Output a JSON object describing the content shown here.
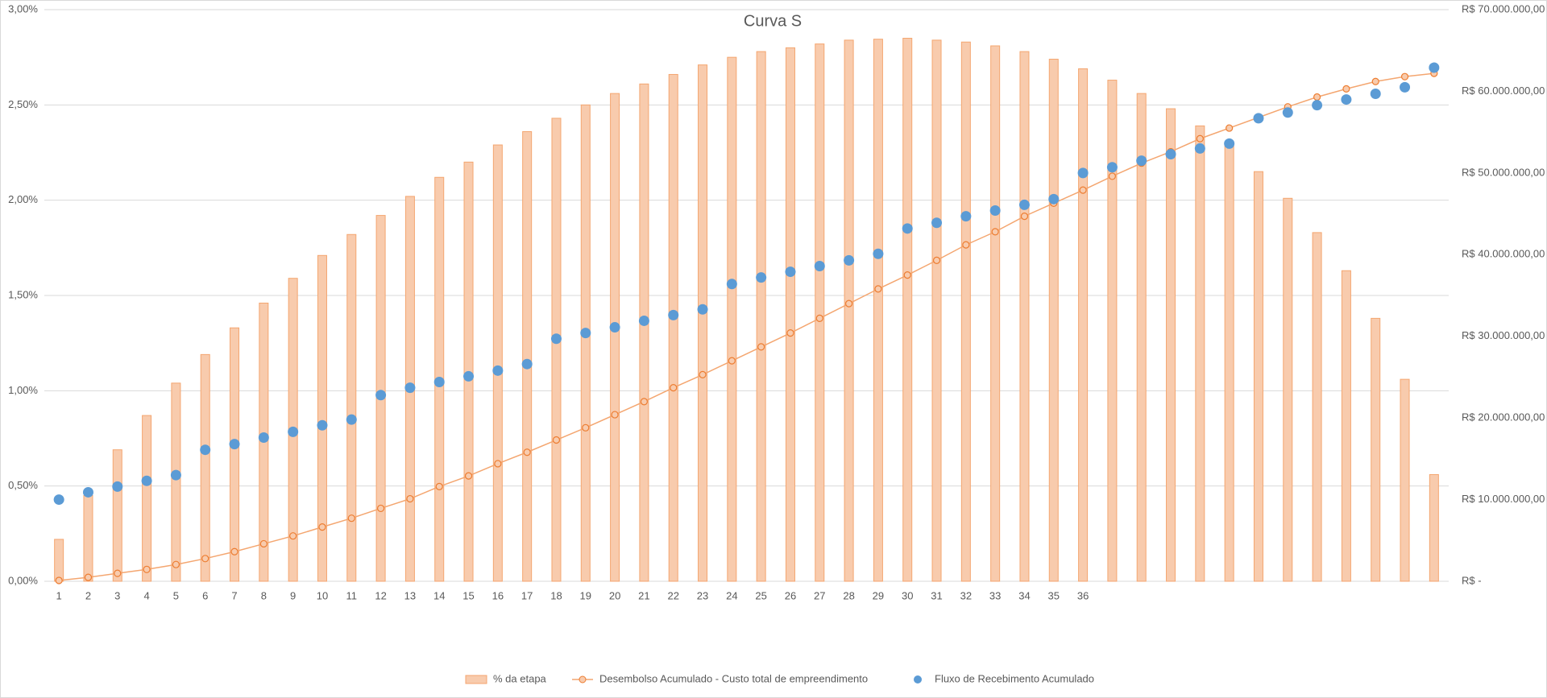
{
  "chart_data": {
    "type": "bar",
    "title": "Curva S",
    "categories": [
      "1",
      "2",
      "3",
      "4",
      "5",
      "6",
      "7",
      "8",
      "9",
      "10",
      "11",
      "12",
      "13",
      "14",
      "15",
      "16",
      "17",
      "18",
      "19",
      "20",
      "21",
      "22",
      "23",
      "24",
      "25",
      "26",
      "27",
      "28",
      "29",
      "30",
      "31",
      "32",
      "33",
      "34",
      "35",
      "36",
      null,
      null,
      null,
      null,
      null,
      null,
      null,
      null,
      null,
      null,
      null,
      null
    ],
    "ylim": [
      0,
      3
    ],
    "yticks": [
      {
        "value": 0,
        "label": "0,00%"
      },
      {
        "value": 0.5,
        "label": "0,50%"
      },
      {
        "value": 1,
        "label": "1,00%"
      },
      {
        "value": 1.5,
        "label": "1,50%"
      },
      {
        "value": 2,
        "label": "2,00%"
      },
      {
        "value": 2.5,
        "label": "2,50%"
      },
      {
        "value": 3,
        "label": "3,00%"
      }
    ],
    "y2lim": [
      0,
      70000000
    ],
    "y2ticks": [
      {
        "value": 0,
        "label": "R$ -"
      },
      {
        "value": 10000000,
        "label": "R$ 10.000.000,00"
      },
      {
        "value": 20000000,
        "label": "R$ 20.000.000,00"
      },
      {
        "value": 30000000,
        "label": "R$ 30.000.000,00"
      },
      {
        "value": 40000000,
        "label": "R$ 40.000.000,00"
      },
      {
        "value": 50000000,
        "label": "R$ 50.000.000,00"
      },
      {
        "value": 60000000,
        "label": "R$ 60.000.000,00"
      },
      {
        "value": 70000000,
        "label": "R$ 70.000.000,00"
      }
    ],
    "grid": true,
    "legend": "bottom",
    "series": [
      {
        "name": "% da etapa",
        "type": "bar",
        "color": "#f8cbad",
        "edge": "#f4a670",
        "values": [
          0.22,
          0.45,
          0.69,
          0.87,
          1.04,
          1.19,
          1.33,
          1.46,
          1.59,
          1.71,
          1.82,
          1.92,
          2.02,
          2.12,
          2.2,
          2.29,
          2.36,
          2.43,
          2.5,
          2.56,
          2.61,
          2.66,
          2.71,
          2.75,
          2.78,
          2.8,
          2.82,
          2.84,
          2.845,
          2.85,
          2.84,
          2.83,
          2.81,
          2.78,
          2.74,
          2.69,
          2.63,
          2.56,
          2.48,
          2.39,
          2.29,
          2.15,
          2.01,
          1.83,
          1.63,
          1.38,
          1.06,
          0.56
        ]
      },
      {
        "name": "Desembolso Acumulado - Custo total de empreendimento",
        "type": "line",
        "axis": "y2",
        "color": "#f4a670",
        "edge": "#ed7d31",
        "values": [
          100000,
          480000,
          970000,
          1450000,
          2050000,
          2780000,
          3620000,
          4590000,
          5550000,
          6640000,
          7720000,
          8930000,
          10100000,
          11600000,
          12900000,
          14400000,
          15800000,
          17300000,
          18800000,
          20400000,
          22000000,
          23700000,
          25300000,
          27000000,
          28700000,
          30400000,
          32200000,
          34000000,
          35800000,
          37500000,
          39300000,
          41200000,
          42800000,
          44700000,
          46300000,
          47900000,
          49600000,
          51200000,
          52600000,
          54200000,
          55500000,
          56800000,
          58100000,
          59300000,
          60300000,
          61200000,
          61800000,
          62200000
        ]
      },
      {
        "name": "Fluxo de Recebimento Acumulado",
        "type": "scatter",
        "axis": "y2",
        "color": "#5b9bd5",
        "values": [
          10000000,
          10900000,
          11600000,
          12300000,
          13000000,
          16100000,
          16800000,
          17600000,
          18300000,
          19100000,
          19800000,
          22800000,
          23700000,
          24400000,
          25100000,
          25800000,
          26600000,
          29700000,
          30400000,
          31100000,
          31900000,
          32600000,
          33300000,
          36400000,
          37200000,
          37900000,
          38600000,
          39300000,
          40100000,
          43200000,
          43900000,
          44700000,
          45400000,
          46100000,
          46800000,
          50000000,
          50700000,
          51500000,
          52300000,
          53000000,
          53600000,
          56700000,
          57400000,
          58300000,
          59000000,
          59700000,
          60500000,
          62900000
        ]
      }
    ]
  }
}
